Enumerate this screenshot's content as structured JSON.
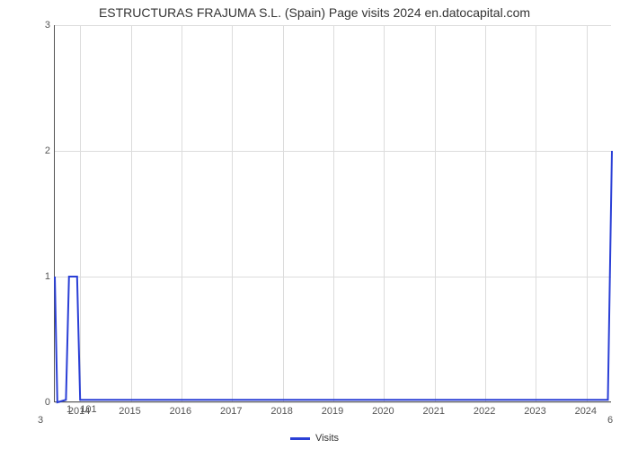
{
  "chart": {
    "type": "line",
    "title": "ESTRUCTURAS FRAJUMA S.L. (Spain) Page visits 2024 en.datocapital.com",
    "title_fontsize": 14,
    "title_color": "#333333",
    "background_color": "#ffffff",
    "grid_color": "#dcdcdc",
    "axis_color": "#555555",
    "tick_fontsize": 11,
    "tick_color": "#555555",
    "y": {
      "min": 0,
      "max": 3,
      "ticks": [
        0,
        1,
        2,
        3
      ]
    },
    "x": {
      "min": 2013.5,
      "max": 2024.5,
      "ticks": [
        2014,
        2015,
        2016,
        2017,
        2018,
        2019,
        2020,
        2021,
        2022,
        2023,
        2024
      ],
      "tick_labels": [
        "2014",
        "2015",
        "2016",
        "2017",
        "2018",
        "2019",
        "2020",
        "2021",
        "2022",
        "2023",
        "2024"
      ]
    },
    "series": {
      "name": "Visits",
      "color": "#2a3fd6",
      "line_width": 2.0,
      "points": [
        [
          2013.5,
          1
        ],
        [
          2013.55,
          0
        ],
        [
          2013.72,
          0.02
        ],
        [
          2013.78,
          1
        ],
        [
          2013.94,
          1
        ],
        [
          2014.0,
          0.02
        ],
        [
          2024.42,
          0.02
        ],
        [
          2024.5,
          2
        ]
      ]
    },
    "corner_labels": {
      "bottom_left": "3",
      "bottom_right": "6",
      "under_peaks": "1   101"
    },
    "legend": {
      "label": "Visits",
      "swatch_color": "#2a3fd6",
      "font_size": 11
    }
  }
}
